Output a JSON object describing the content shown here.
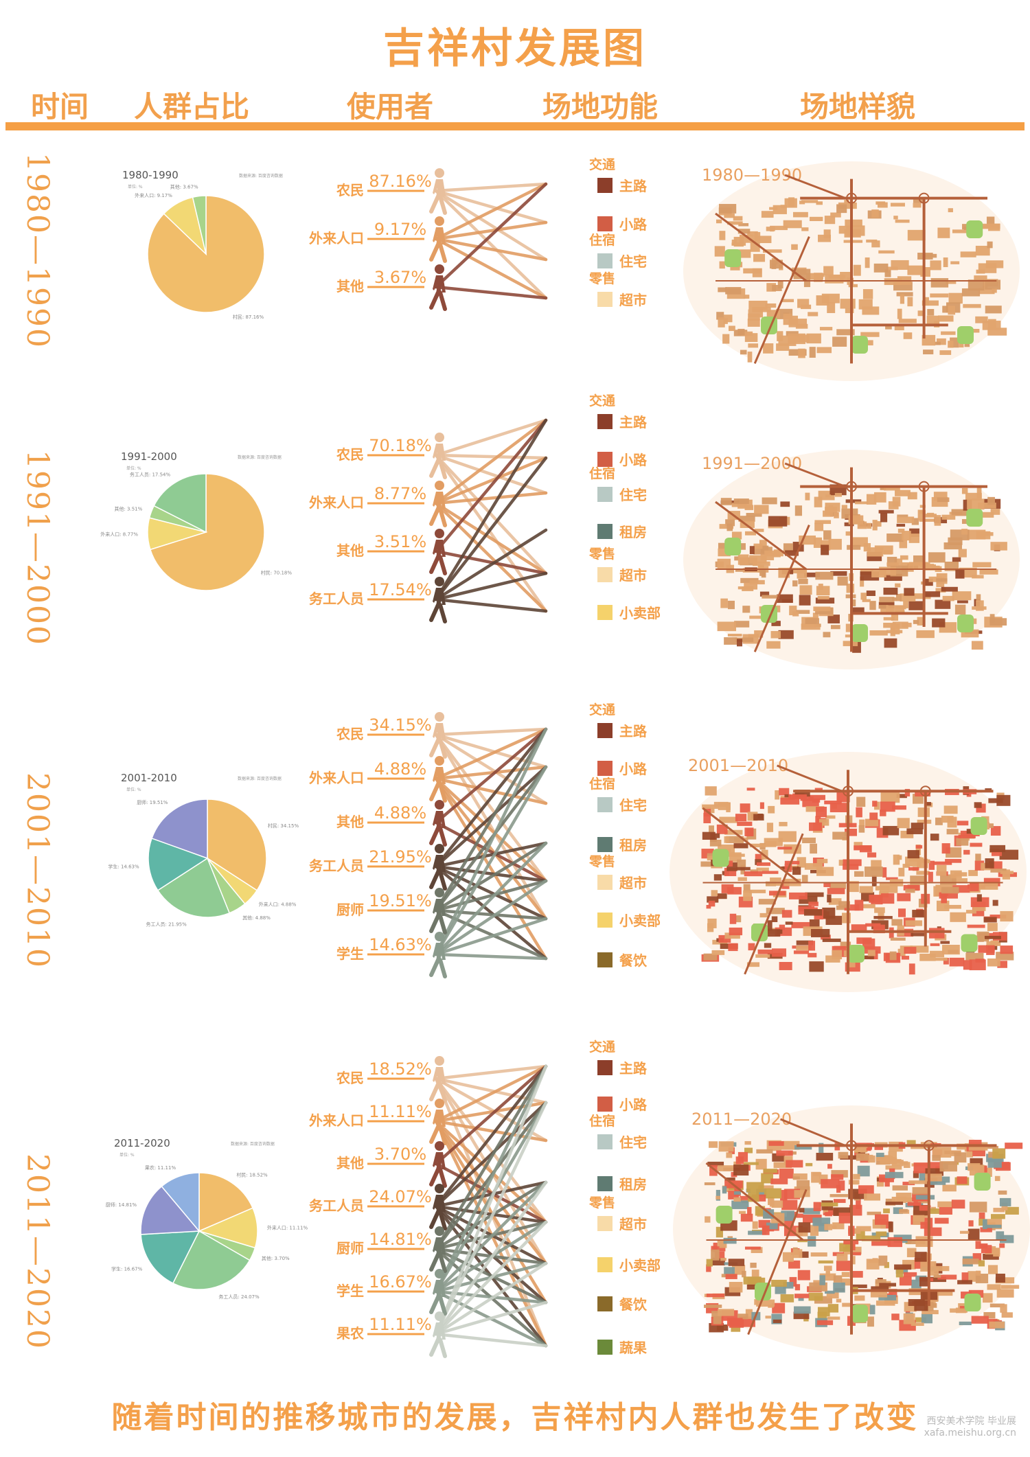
{
  "title": "吉祥村发展图",
  "headers": [
    "时间",
    "人群占比",
    "使用者",
    "场地功能",
    "场地样貌"
  ],
  "footer": "随着时间的推移城市的发展，吉祥村内人群也发生了改变",
  "watermark": {
    "line1": "西安美术学院 毕业展",
    "line2": "xafa.meishu.org.cn"
  },
  "colors": {
    "accent": "#f4a04a",
    "users": {
      "农民": "#e8bf9c",
      "外来人口": "#e29d63",
      "其他": "#8e4a3a",
      "务工人员": "#5e4537",
      "厨师": "#6f7668",
      "学生": "#8a9a8c",
      "果农": "#c9d0c6"
    },
    "functions": {
      "主路": "#8c3e2a",
      "小路": "#d25e45",
      "住宅": "#b8c9c4",
      "租房": "#5f7b72",
      "超市": "#f8dba8",
      "小卖部": "#f5d26b",
      "餐饮": "#8a6a2a",
      "蔬果": "#6b8a3a"
    }
  },
  "chart_data": [
    {
      "type": "pie",
      "period": "1980—1990",
      "title": "1980-1990",
      "unit": "单位: %",
      "source": "数据来源: 百度咨询数据",
      "slices": [
        {
          "label": "村民",
          "value": 87.16,
          "color": "#f1bd6a"
        },
        {
          "label": "外来人口",
          "value": 9.17,
          "color": "#f2d874"
        },
        {
          "label": "其他",
          "value": 3.67,
          "color": "#a8d48a"
        }
      ],
      "users": [
        {
          "name": "农民",
          "pct": "87.16%"
        },
        {
          "name": "外来人口",
          "pct": "9.17%"
        },
        {
          "name": "其他",
          "pct": "3.67%"
        }
      ],
      "functions": [
        {
          "group": "交通",
          "items": [
            "主路",
            "小路"
          ]
        },
        {
          "group": "住宿",
          "items": [
            "住宅"
          ]
        },
        {
          "group": "零售",
          "items": [
            "超市"
          ]
        }
      ],
      "links": [
        [
          "农民",
          "主路"
        ],
        [
          "农民",
          "小路"
        ],
        [
          "农民",
          "住宅"
        ],
        [
          "农民",
          "超市"
        ],
        [
          "外来人口",
          "主路"
        ],
        [
          "外来人口",
          "小路"
        ],
        [
          "外来人口",
          "住宅"
        ],
        [
          "外来人口",
          "超市"
        ],
        [
          "其他",
          "主路"
        ],
        [
          "其他",
          "超市"
        ]
      ],
      "map_label": "1980—1990"
    },
    {
      "type": "pie",
      "period": "1991—2000",
      "title": "1991-2000",
      "unit": "单位: %",
      "source": "数据来源: 百度咨询数据",
      "slices": [
        {
          "label": "村民",
          "value": 70.18,
          "color": "#f1bd6a"
        },
        {
          "label": "外来人口",
          "value": 8.77,
          "color": "#f2d874"
        },
        {
          "label": "其他",
          "value": 3.51,
          "color": "#a8d48a"
        },
        {
          "label": "务工人员",
          "value": 17.54,
          "color": "#8fcb93"
        }
      ],
      "users": [
        {
          "name": "农民",
          "pct": "70.18%"
        },
        {
          "name": "外来人口",
          "pct": "8.77%"
        },
        {
          "name": "其他",
          "pct": "3.51%"
        },
        {
          "name": "务工人员",
          "pct": "17.54%"
        }
      ],
      "functions": [
        {
          "group": "交通",
          "items": [
            "主路",
            "小路"
          ]
        },
        {
          "group": "住宿",
          "items": [
            "住宅",
            "租房"
          ]
        },
        {
          "group": "零售",
          "items": [
            "超市",
            "小卖部"
          ]
        }
      ],
      "links": [
        [
          "农民",
          "主路"
        ],
        [
          "农民",
          "小路"
        ],
        [
          "农民",
          "住宅"
        ],
        [
          "农民",
          "超市"
        ],
        [
          "农民",
          "小卖部"
        ],
        [
          "外来人口",
          "主路"
        ],
        [
          "外来人口",
          "小路"
        ],
        [
          "外来人口",
          "住宅"
        ],
        [
          "外来人口",
          "超市"
        ],
        [
          "外来人口",
          "小卖部"
        ],
        [
          "其他",
          "主路"
        ],
        [
          "其他",
          "超市"
        ],
        [
          "务工人员",
          "主路"
        ],
        [
          "务工人员",
          "小路"
        ],
        [
          "务工人员",
          "租房"
        ],
        [
          "务工人员",
          "超市"
        ],
        [
          "务工人员",
          "小卖部"
        ]
      ],
      "map_label": "1991—2000"
    },
    {
      "type": "pie",
      "period": "2001—2010",
      "title": "2001-2010",
      "unit": "单位: %",
      "source": "数据来源: 百度咨询数据",
      "slices": [
        {
          "label": "村民",
          "value": 34.15,
          "color": "#f1bd6a"
        },
        {
          "label": "外来人口",
          "value": 4.88,
          "color": "#f2d874"
        },
        {
          "label": "其他",
          "value": 4.88,
          "color": "#a8d48a"
        },
        {
          "label": "务工人员",
          "value": 21.95,
          "color": "#8fcb93"
        },
        {
          "label": "学生",
          "value": 14.63,
          "color": "#5fb6a6"
        },
        {
          "label": "厨师",
          "value": 19.51,
          "color": "#8e92cc"
        }
      ],
      "users": [
        {
          "name": "农民",
          "pct": "34.15%"
        },
        {
          "name": "外来人口",
          "pct": "4.88%"
        },
        {
          "name": "其他",
          "pct": "4.88%"
        },
        {
          "name": "务工人员",
          "pct": "21.95%"
        },
        {
          "name": "厨师",
          "pct": "19.51%"
        },
        {
          "name": "学生",
          "pct": "14.63%"
        }
      ],
      "functions": [
        {
          "group": "交通",
          "items": [
            "主路",
            "小路"
          ]
        },
        {
          "group": "住宿",
          "items": [
            "住宅",
            "租房"
          ]
        },
        {
          "group": "零售",
          "items": [
            "超市",
            "小卖部",
            "餐饮"
          ]
        }
      ],
      "links": [
        [
          "农民",
          "主路"
        ],
        [
          "农民",
          "小路"
        ],
        [
          "农民",
          "住宅"
        ],
        [
          "农民",
          "超市"
        ],
        [
          "农民",
          "小卖部"
        ],
        [
          "外来人口",
          "主路"
        ],
        [
          "外来人口",
          "小路"
        ],
        [
          "外来人口",
          "住宅"
        ],
        [
          "外来人口",
          "超市"
        ],
        [
          "外来人口",
          "小卖部"
        ],
        [
          "外来人口",
          "餐饮"
        ],
        [
          "其他",
          "主路"
        ],
        [
          "其他",
          "超市"
        ],
        [
          "务工人员",
          "主路"
        ],
        [
          "务工人员",
          "小路"
        ],
        [
          "务工人员",
          "租房"
        ],
        [
          "务工人员",
          "超市"
        ],
        [
          "务工人员",
          "小卖部"
        ],
        [
          "务工人员",
          "餐饮"
        ],
        [
          "厨师",
          "主路"
        ],
        [
          "厨师",
          "小路"
        ],
        [
          "厨师",
          "租房"
        ],
        [
          "厨师",
          "超市"
        ],
        [
          "厨师",
          "小卖部"
        ],
        [
          "厨师",
          "餐饮"
        ],
        [
          "学生",
          "主路"
        ],
        [
          "学生",
          "小路"
        ],
        [
          "学生",
          "租房"
        ],
        [
          "学生",
          "超市"
        ],
        [
          "学生",
          "小卖部"
        ],
        [
          "学生",
          "餐饮"
        ]
      ],
      "map_label": "2001—2010"
    },
    {
      "type": "pie",
      "period": "2011—2020",
      "title": "2011-2020",
      "unit": "单位: %",
      "source": "数据来源: 百度咨询数据",
      "slices": [
        {
          "label": "村民",
          "value": 18.52,
          "color": "#f1bd6a"
        },
        {
          "label": "外来人口",
          "value": 11.11,
          "color": "#f2d874"
        },
        {
          "label": "其他",
          "value": 3.7,
          "color": "#a8d48a"
        },
        {
          "label": "务工人员",
          "value": 24.07,
          "color": "#8fcb93"
        },
        {
          "label": "学生",
          "value": 16.67,
          "color": "#5fb6a6"
        },
        {
          "label": "厨师",
          "value": 14.81,
          "color": "#8e92cc"
        },
        {
          "label": "果农",
          "value": 11.11,
          "color": "#8fb0e0"
        }
      ],
      "users": [
        {
          "name": "农民",
          "pct": "18.52%"
        },
        {
          "name": "外来人口",
          "pct": "11.11%"
        },
        {
          "name": "其他",
          "pct": "3.70%"
        },
        {
          "name": "务工人员",
          "pct": "24.07%"
        },
        {
          "name": "厨师",
          "pct": "14.81%"
        },
        {
          "name": "学生",
          "pct": "16.67%"
        },
        {
          "name": "果农",
          "pct": "11.11%"
        }
      ],
      "functions": [
        {
          "group": "交通",
          "items": [
            "主路",
            "小路"
          ]
        },
        {
          "group": "住宿",
          "items": [
            "住宅",
            "租房"
          ]
        },
        {
          "group": "零售",
          "items": [
            "超市",
            "小卖部",
            "餐饮",
            "蔬果"
          ]
        }
      ],
      "links": [
        [
          "农民",
          "主路"
        ],
        [
          "农民",
          "小路"
        ],
        [
          "农民",
          "住宅"
        ],
        [
          "农民",
          "超市"
        ],
        [
          "农民",
          "小卖部"
        ],
        [
          "农民",
          "蔬果"
        ],
        [
          "外来人口",
          "主路"
        ],
        [
          "外来人口",
          "小路"
        ],
        [
          "外来人口",
          "住宅"
        ],
        [
          "外来人口",
          "超市"
        ],
        [
          "外来人口",
          "小卖部"
        ],
        [
          "外来人口",
          "餐饮"
        ],
        [
          "外来人口",
          "蔬果"
        ],
        [
          "其他",
          "主路"
        ],
        [
          "其他",
          "超市"
        ],
        [
          "务工人员",
          "主路"
        ],
        [
          "务工人员",
          "小路"
        ],
        [
          "务工人员",
          "租房"
        ],
        [
          "务工人员",
          "超市"
        ],
        [
          "务工人员",
          "小卖部"
        ],
        [
          "务工人员",
          "餐饮"
        ],
        [
          "务工人员",
          "蔬果"
        ],
        [
          "厨师",
          "主路"
        ],
        [
          "厨师",
          "小路"
        ],
        [
          "厨师",
          "租房"
        ],
        [
          "厨师",
          "超市"
        ],
        [
          "厨师",
          "小卖部"
        ],
        [
          "厨师",
          "餐饮"
        ],
        [
          "厨师",
          "蔬果"
        ],
        [
          "学生",
          "主路"
        ],
        [
          "学生",
          "小路"
        ],
        [
          "学生",
          "租房"
        ],
        [
          "学生",
          "超市"
        ],
        [
          "学生",
          "小卖部"
        ],
        [
          "学生",
          "餐饮"
        ],
        [
          "学生",
          "蔬果"
        ],
        [
          "果农",
          "主路"
        ],
        [
          "果农",
          "小路"
        ],
        [
          "果农",
          "租房"
        ],
        [
          "果农",
          "超市"
        ],
        [
          "果农",
          "小卖部"
        ],
        [
          "果农",
          "餐饮"
        ],
        [
          "果农",
          "蔬果"
        ]
      ],
      "map_label": "2011—2020"
    }
  ]
}
